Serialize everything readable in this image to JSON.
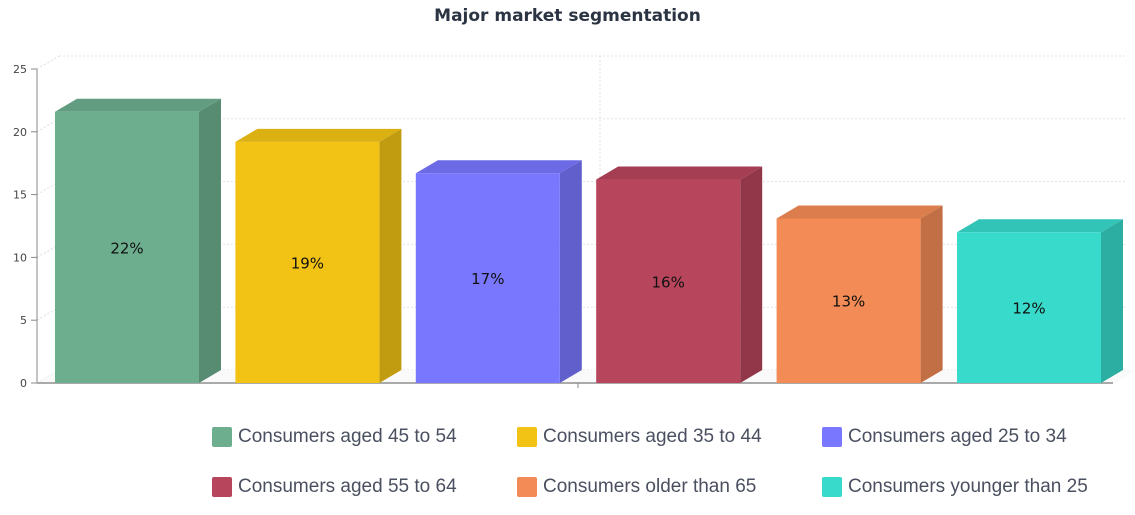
{
  "chart_data": {
    "type": "bar",
    "title": "Major market segmentation",
    "categories": [
      "Consumers aged 45 to 54",
      "Consumers aged 35 to 44",
      "Consumers aged 25 to 34",
      "Consumers aged 55 to 64",
      "Consumers older than 65",
      "Consumers younger than 25"
    ],
    "values": [
      21.6,
      19.2,
      16.7,
      16.2,
      13.1,
      12.0
    ],
    "data_labels": [
      "22%",
      "19%",
      "17%",
      "16%",
      "13%",
      "12%"
    ],
    "colors": [
      "#6dae8f",
      "#f2c314",
      "#7877fe",
      "#b7455c",
      "#f38b56",
      "#38dacb"
    ],
    "ylim": [
      0,
      25
    ],
    "yticks": [
      0,
      5,
      10,
      15,
      20,
      25
    ],
    "grid": true,
    "legend_placement": "bottom",
    "style": "3d"
  }
}
